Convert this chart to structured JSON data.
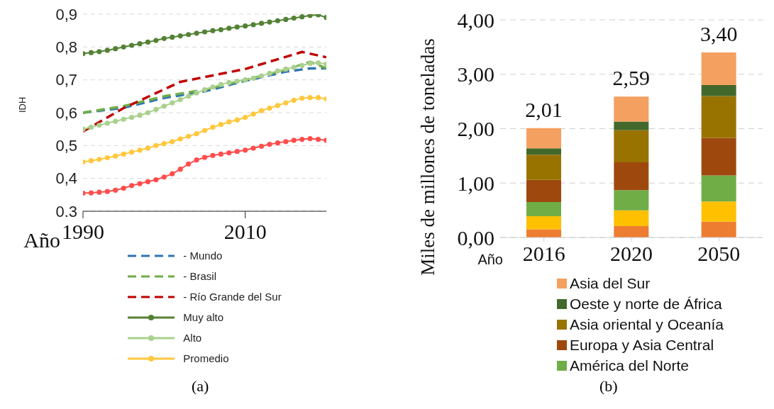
{
  "chart_data": [
    {
      "type": "line",
      "ylabel": "IDH",
      "xlabel": "Año",
      "xlim": [
        1990,
        2020
      ],
      "xticks": [
        1990,
        2010
      ],
      "ylim": [
        0.3,
        0.9
      ],
      "yticks": [
        {
          "value": 0.3,
          "label": "0.3"
        },
        {
          "value": 0.4,
          "label": "0,4"
        },
        {
          "value": 0.5,
          "label": "0,5"
        },
        {
          "value": 0.6,
          "label": "0,6"
        },
        {
          "value": 0.7,
          "label": "0,7"
        },
        {
          "value": 0.8,
          "label": "0,8"
        },
        {
          "value": 0.9,
          "label": "0,9"
        }
      ],
      "grid": "y",
      "legend": "bottom",
      "annotations": [
        "(a)"
      ],
      "series": [
        {
          "name": "- Mundo",
          "color": "#2e75b6",
          "line_style": "dashed",
          "x": [
            1990,
            1995,
            2000,
            2005,
            2010,
            2015,
            2018,
            2020
          ],
          "values": [
            0.6,
            0.615,
            0.645,
            0.665,
            0.697,
            0.725,
            0.735,
            0.735
          ]
        },
        {
          "name": "- Brasil",
          "color": "#70ad47",
          "line_style": "dashed",
          "x": [
            1990,
            1995,
            2000,
            2005,
            2010,
            2015,
            2018,
            2020
          ],
          "values": [
            0.6,
            0.62,
            0.65,
            0.67,
            0.7,
            0.73,
            0.755,
            0.735
          ]
        },
        {
          "name": "- Río Grande del Sur",
          "color": "#c00000",
          "line_style": "dashed",
          "x": [
            1990,
            1995,
            2002,
            2010,
            2017,
            2020
          ],
          "values": [
            0.543,
            0.614,
            0.694,
            0.733,
            0.785,
            0.769
          ]
        },
        {
          "name": "Muy alto",
          "color": "#548235",
          "marker": "circle",
          "x": [
            1990,
            1991,
            1992,
            1993,
            1994,
            1995,
            1996,
            1997,
            1998,
            1999,
            2000,
            2001,
            2002,
            2003,
            2004,
            2005,
            2006,
            2007,
            2008,
            2009,
            2010,
            2011,
            2012,
            2013,
            2014,
            2015,
            2016,
            2017,
            2018,
            2019,
            2020
          ],
          "values": [
            0.78,
            0.783,
            0.786,
            0.79,
            0.795,
            0.8,
            0.805,
            0.81,
            0.815,
            0.82,
            0.826,
            0.83,
            0.834,
            0.838,
            0.842,
            0.846,
            0.85,
            0.853,
            0.857,
            0.861,
            0.864,
            0.868,
            0.872,
            0.876,
            0.88,
            0.884,
            0.888,
            0.892,
            0.896,
            0.898,
            0.89
          ]
        },
        {
          "name": "Alto",
          "color": "#a9d18e",
          "marker": "circle",
          "x": [
            1990,
            1991,
            1992,
            1993,
            1994,
            1995,
            1996,
            1997,
            1998,
            1999,
            2000,
            2001,
            2002,
            2003,
            2004,
            2005,
            2006,
            2007,
            2008,
            2009,
            2010,
            2011,
            2012,
            2013,
            2014,
            2015,
            2016,
            2017,
            2018,
            2019,
            2020
          ],
          "values": [
            0.55,
            0.556,
            0.562,
            0.568,
            0.574,
            0.58,
            0.586,
            0.592,
            0.6,
            0.61,
            0.62,
            0.63,
            0.64,
            0.65,
            0.66,
            0.67,
            0.678,
            0.686,
            0.692,
            0.696,
            0.7,
            0.705,
            0.712,
            0.72,
            0.727,
            0.733,
            0.738,
            0.744,
            0.75,
            0.752,
            0.748
          ]
        },
        {
          "name": "Promedio",
          "color": "#ffc83d",
          "marker": "circle",
          "x": [
            1990,
            1991,
            1992,
            1993,
            1994,
            1995,
            1996,
            1997,
            1998,
            1999,
            2000,
            2001,
            2002,
            2003,
            2004,
            2005,
            2006,
            2007,
            2008,
            2009,
            2010,
            2011,
            2012,
            2013,
            2014,
            2015,
            2016,
            2017,
            2018,
            2019,
            2020
          ],
          "values": [
            0.45,
            0.454,
            0.458,
            0.463,
            0.468,
            0.474,
            0.48,
            0.486,
            0.492,
            0.5,
            0.506,
            0.512,
            0.52,
            0.528,
            0.536,
            0.546,
            0.556,
            0.564,
            0.572,
            0.578,
            0.586,
            0.596,
            0.606,
            0.614,
            0.622,
            0.63,
            0.638,
            0.644,
            0.646,
            0.646,
            0.642
          ]
        },
        {
          "color": "#ff4d4d",
          "marker": "circle",
          "x": [
            1990,
            1991,
            1992,
            1993,
            1994,
            1995,
            1996,
            1997,
            1998,
            1999,
            2000,
            2001,
            2002,
            2003,
            2004,
            2005,
            2006,
            2007,
            2008,
            2009,
            2010,
            2011,
            2012,
            2013,
            2014,
            2015,
            2016,
            2017,
            2018,
            2019,
            2020
          ],
          "values": [
            0.355,
            0.356,
            0.358,
            0.36,
            0.364,
            0.37,
            0.378,
            0.384,
            0.39,
            0.396,
            0.404,
            0.414,
            0.428,
            0.444,
            0.456,
            0.464,
            0.47,
            0.474,
            0.478,
            0.482,
            0.486,
            0.492,
            0.498,
            0.504,
            0.508,
            0.512,
            0.516,
            0.519,
            0.521,
            0.519,
            0.516
          ]
        }
      ]
    },
    {
      "type": "bar",
      "stacked": true,
      "ylabel": "Miles de millones de toneladas",
      "xlabel": "Año",
      "categories": [
        "2016",
        "2020",
        "2050"
      ],
      "ylim": [
        0,
        4
      ],
      "yticks": [
        {
          "value": 0,
          "label": "0,00"
        },
        {
          "value": 1,
          "label": "1,00"
        },
        {
          "value": 2,
          "label": "2,00"
        },
        {
          "value": 3,
          "label": "3,00"
        },
        {
          "value": 4,
          "label": "4,00"
        }
      ],
      "grid": "y",
      "legend": "bottom",
      "totals": [
        "2,01",
        "2,59",
        "3,40"
      ],
      "annotations": [
        "(b)"
      ],
      "series": [
        {
          "color": "#ed7d31",
          "values": [
            0.15,
            0.21,
            0.29
          ]
        },
        {
          "color": "#ffc000",
          "values": [
            0.24,
            0.29,
            0.37
          ]
        },
        {
          "name": "América del Norte",
          "color": "#70ad47",
          "values": [
            0.26,
            0.37,
            0.48
          ]
        },
        {
          "name": "Europa y Asia Central",
          "color": "#9e480e",
          "values": [
            0.41,
            0.51,
            0.69
          ]
        },
        {
          "name": "Asia oriental y Oceanía",
          "color": "#997300",
          "values": [
            0.46,
            0.59,
            0.77
          ]
        },
        {
          "name": "Oeste y norte de África",
          "color": "#43682b",
          "values": [
            0.12,
            0.16,
            0.2
          ]
        },
        {
          "name": "Asia del Sur",
          "color": "#f4a060",
          "values": [
            0.37,
            0.46,
            0.6
          ]
        }
      ]
    }
  ]
}
